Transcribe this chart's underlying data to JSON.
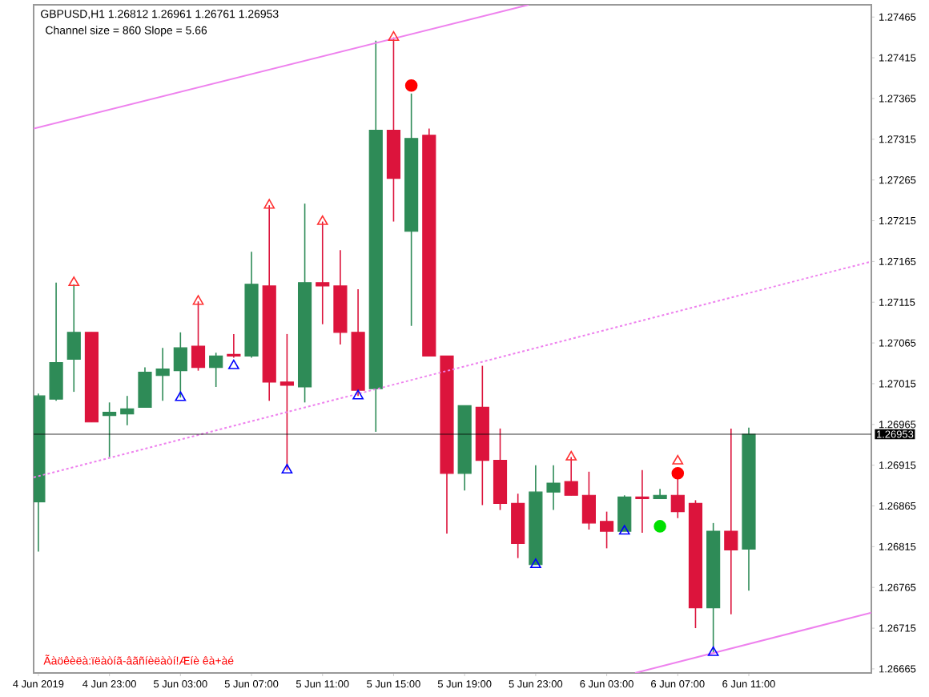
{
  "chart_data": {
    "type": "candlestick",
    "title": "GBPUSD,H1  1.26812 1.26961 1.26761 1.26953",
    "annotations": [
      "Channel size = 860 Slope = 5.66",
      "Ãàöêèëà:ïëàòíã-âãñíèëàòí!Æíè êà+àé"
    ],
    "x": [
      "2019-06-04T19:00",
      "2019-06-04T20:00",
      "2019-06-04T21:00",
      "2019-06-04T22:00",
      "2019-06-04T23:00",
      "2019-06-05T00:00",
      "2019-06-05T01:00",
      "2019-06-05T02:00",
      "2019-06-05T03:00",
      "2019-06-05T04:00",
      "2019-06-05T05:00",
      "2019-06-05T06:00",
      "2019-06-05T07:00",
      "2019-06-05T08:00",
      "2019-06-05T09:00",
      "2019-06-05T10:00",
      "2019-06-05T11:00",
      "2019-06-05T12:00",
      "2019-06-05T13:00",
      "2019-06-05T14:00",
      "2019-06-05T15:00",
      "2019-06-05T16:00",
      "2019-06-05T17:00",
      "2019-06-05T18:00",
      "2019-06-05T19:00",
      "2019-06-05T20:00",
      "2019-06-05T21:00",
      "2019-06-05T22:00",
      "2019-06-05T23:00",
      "2019-06-06T00:00",
      "2019-06-06T01:00",
      "2019-06-06T02:00",
      "2019-06-06T03:00",
      "2019-06-06T04:00",
      "2019-06-06T05:00",
      "2019-06-06T06:00",
      "2019-06-06T07:00",
      "2019-06-06T08:00",
      "2019-06-06T09:00",
      "2019-06-06T10:00",
      "2019-06-06T11:00"
    ],
    "ohlc": [
      [
        1.2687,
        1.27003,
        1.26809,
        1.27
      ],
      [
        1.26996,
        1.27139,
        1.26994,
        1.27041
      ],
      [
        1.27045,
        1.27137,
        1.27005,
        1.27078
      ],
      [
        1.27078,
        1.27078,
        1.26968,
        1.26968
      ],
      [
        1.26976,
        1.26992,
        1.26925,
        1.2698
      ],
      [
        1.26978,
        1.27,
        1.26964,
        1.26984
      ],
      [
        1.26986,
        1.27035,
        1.26986,
        1.27029
      ],
      [
        1.27025,
        1.27059,
        1.26994,
        1.27033
      ],
      [
        1.27031,
        1.27078,
        1.26998,
        1.27059
      ],
      [
        1.27061,
        1.27116,
        1.27031,
        1.27035
      ],
      [
        1.27035,
        1.27053,
        1.27011,
        1.27049
      ],
      [
        1.27051,
        1.27076,
        1.27047,
        1.27049
      ],
      [
        1.27049,
        1.27177,
        1.27047,
        1.27137
      ],
      [
        1.27135,
        1.27234,
        1.26994,
        1.27017
      ],
      [
        1.27017,
        1.27076,
        1.26909,
        1.27013
      ],
      [
        1.27011,
        1.27236,
        1.26992,
        1.27139
      ],
      [
        1.27139,
        1.27214,
        1.27088,
        1.27135
      ],
      [
        1.27135,
        1.27179,
        1.27063,
        1.27078
      ],
      [
        1.27078,
        1.27131,
        1.27,
        1.27007
      ],
      [
        1.27009,
        1.27436,
        1.26956,
        1.27326
      ],
      [
        1.27326,
        1.2744,
        1.27214,
        1.27267
      ],
      [
        1.27202,
        1.27371,
        1.27086,
        1.27316
      ],
      [
        1.2732,
        1.27328,
        1.27049,
        1.27049
      ],
      [
        1.27049,
        1.27049,
        1.26831,
        1.26905
      ],
      [
        1.26905,
        1.26988,
        1.26884,
        1.26988
      ],
      [
        1.26986,
        1.27037,
        1.26866,
        1.26921
      ],
      [
        1.26921,
        1.2696,
        1.2686,
        1.26868
      ],
      [
        1.26868,
        1.2688,
        1.26801,
        1.26819
      ],
      [
        1.26793,
        1.26915,
        1.26793,
        1.26882
      ],
      [
        1.26882,
        1.26915,
        1.2686,
        1.26893
      ],
      [
        1.26895,
        1.26925,
        1.26878,
        1.26878
      ],
      [
        1.26878,
        1.26907,
        1.26836,
        1.26844
      ],
      [
        1.26846,
        1.26858,
        1.26813,
        1.26834
      ],
      [
        1.26834,
        1.26878,
        1.26834,
        1.26876
      ],
      [
        1.26876,
        1.26909,
        1.26832,
        1.26874
      ],
      [
        1.26874,
        1.26886,
        1.26874,
        1.26878
      ],
      [
        1.26878,
        1.26899,
        1.2685,
        1.26858
      ],
      [
        1.26868,
        1.26872,
        1.26715,
        1.2674
      ],
      [
        1.2674,
        1.26844,
        1.26685,
        1.26834
      ],
      [
        1.26834,
        1.2696,
        1.26732,
        1.26811
      ],
      [
        1.26812,
        1.26961,
        1.26761,
        1.26953
      ]
    ],
    "colors": [
      "#2e8b57",
      "#2e8b57",
      "#2e8b57",
      "#dc143c",
      "#2e8b57",
      "#2e8b57",
      "#2e8b57",
      "#2e8b57",
      "#2e8b57",
      "#dc143c",
      "#2e8b57",
      "#dc143c",
      "#2e8b57",
      "#dc143c",
      "#dc143c",
      "#2e8b57",
      "#dc143c",
      "#dc143c",
      "#dc143c",
      "#2e8b57",
      "#dc143c",
      "#2e8b57",
      "#dc143c",
      "#dc143c",
      "#2e8b57",
      "#dc143c",
      "#dc143c",
      "#dc143c",
      "#2e8b57",
      "#2e8b57",
      "#dc143c",
      "#dc143c",
      "#dc143c",
      "#2e8b57",
      "#dc143c",
      "#2e8b57",
      "#dc143c",
      "#dc143c",
      "#2e8b57",
      "#dc143c",
      "#2e8b57"
    ],
    "series": [
      {
        "type": "line",
        "color": "#ee82ee",
        "line_style": "solid",
        "x": [
          "2019-06-04T18:44",
          "2019-06-05T22:36"
        ],
        "values": [
          1.27328,
          1.2748
        ]
      },
      {
        "type": "line",
        "color": "#ee82ee",
        "line_style": "dotted",
        "x": [
          "2019-06-04T18:44",
          "2019-06-06T17:54"
        ],
        "values": [
          1.269,
          1.27165
        ]
      },
      {
        "type": "line",
        "color": "#ee82ee",
        "line_style": "solid",
        "x": [
          "2019-06-06T04:36",
          "2019-06-06T17:54"
        ],
        "values": [
          1.2666,
          1.26734
        ]
      },
      {
        "type": "scatter",
        "color": "#ff0000",
        "marker": "circle",
        "x": [
          "2019-06-05T16:00",
          "2019-06-06T07:00"
        ],
        "values": [
          1.27381,
          1.26905
        ]
      },
      {
        "type": "scatter",
        "color": "#ff3030",
        "marker": "triangle",
        "x": [
          "2019-06-04T21:00",
          "2019-06-05T04:00",
          "2019-06-05T08:00",
          "2019-06-05T11:00",
          "2019-06-05T15:00",
          "2019-06-06T01:00",
          "2019-06-06T07:00"
        ],
        "values": [
          1.27139,
          1.27116,
          1.27234,
          1.27214,
          1.2744,
          1.26925,
          1.2692
        ]
      },
      {
        "type": "scatter",
        "color": "#0000ff",
        "marker": "triangle",
        "x": [
          "2019-06-05T03:00",
          "2019-06-05T06:00",
          "2019-06-05T09:00",
          "2019-06-05T13:00",
          "2019-06-05T23:00",
          "2019-06-06T04:00",
          "2019-06-06T09:00"
        ],
        "values": [
          1.26998,
          1.27037,
          1.26909,
          1.27,
          1.26793,
          1.26834,
          1.26685
        ]
      },
      {
        "type": "scatter",
        "color": "#00e000",
        "marker": "circle",
        "x": [
          "2019-06-06T06:00"
        ],
        "values": [
          1.2684
        ]
      }
    ],
    "ref_lines": [
      {
        "axis": "y",
        "value": 1.26953,
        "label": "1.26953",
        "color": "#000000"
      }
    ],
    "xlim": [
      "2019-06-04T18:44",
      "2019-06-06T17:54"
    ],
    "xticks": [
      {
        "value": "2019-06-04T19:00",
        "label": "4 Jun 2019"
      },
      {
        "value": "2019-06-04T23:00",
        "label": "4 Jun 23:00"
      },
      {
        "value": "2019-06-05T03:00",
        "label": "5 Jun 03:00"
      },
      {
        "value": "2019-06-05T07:00",
        "label": "5 Jun 07:00"
      },
      {
        "value": "2019-06-05T11:00",
        "label": "5 Jun 11:00"
      },
      {
        "value": "2019-06-05T15:00",
        "label": "5 Jun 15:00"
      },
      {
        "value": "2019-06-05T19:00",
        "label": "5 Jun 19:00"
      },
      {
        "value": "2019-06-05T23:00",
        "label": "5 Jun 23:00"
      },
      {
        "value": "2019-06-06T03:00",
        "label": "6 Jun 03:00"
      },
      {
        "value": "2019-06-06T07:00",
        "label": "6 Jun 07:00"
      },
      {
        "value": "2019-06-06T11:00",
        "label": "6 Jun 11:00"
      }
    ],
    "ylim": [
      1.2666,
      1.2748
    ],
    "yticks": [
      1.26665,
      1.26715,
      1.26765,
      1.26815,
      1.26865,
      1.26915,
      1.26965,
      1.27015,
      1.27065,
      1.27115,
      1.27165,
      1.27215,
      1.27265,
      1.27315,
      1.27365,
      1.27415,
      1.27465
    ],
    "grid": false
  }
}
